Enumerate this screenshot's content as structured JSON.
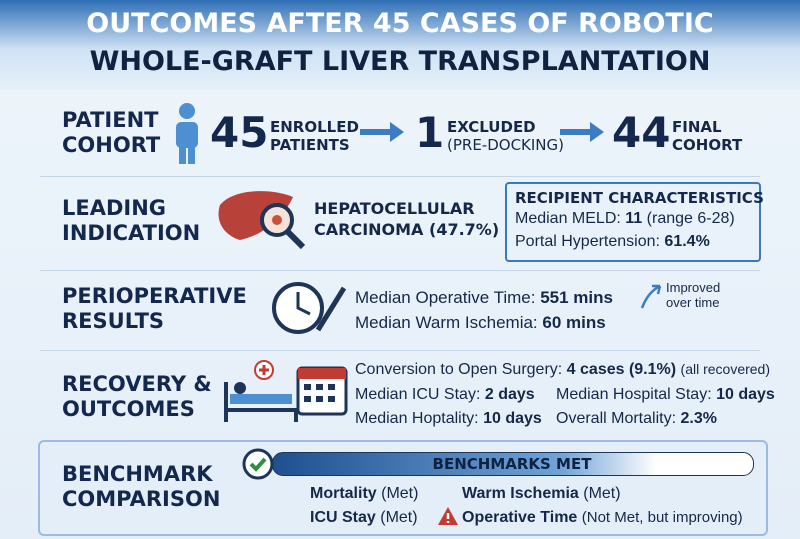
{
  "header": {
    "title_lines": [
      "OUTCOMES AFTER 45 CASES OF ROBOTIC",
      "WHOLE-GRAFT LIVER TRANSPLANTATION"
    ]
  },
  "cohort": {
    "label_lines": [
      "PATIENT",
      "COHORT"
    ],
    "steps": [
      {
        "number": "45",
        "text_lines": [
          "ENROLLED",
          "PATIENTS"
        ]
      },
      {
        "number": "1",
        "text_lines": [
          "EXCLUDED",
          "(PRE-DOCKING)"
        ]
      },
      {
        "number": "44",
        "text_lines": [
          "FINAL",
          "COHORT"
        ]
      }
    ]
  },
  "indication": {
    "label_lines": [
      "LEADING",
      "INDICATION"
    ],
    "text_lines": [
      "HEPATOCELLULAR",
      "CARCINOMA (47.7%)"
    ],
    "characteristics": {
      "title": "RECIPIENT CHARACTERISTICS",
      "meld_label": "Median MELD:",
      "meld_value": "11",
      "meld_range": "(range 6-28)",
      "portal_label": "Portal Hypertension:",
      "portal_value": "61.4%"
    }
  },
  "perioperative": {
    "label_lines": [
      "PERIOPERATIVE",
      "RESULTS"
    ],
    "items": [
      {
        "label": "Median Operative Time:",
        "value": "551 mins"
      },
      {
        "label": "Median Warm Ischemia:",
        "value": "60 mins"
      }
    ],
    "note_lines": [
      "Improved",
      "over time"
    ]
  },
  "recovery": {
    "label_lines": [
      "RECOVERY &",
      "OUTCOMES"
    ],
    "conversion": {
      "label": "Conversion to Open Surgery:",
      "value": "4 cases (9.1%)",
      "note": "(all recovered)"
    },
    "items": [
      {
        "label": "Median ICU Stay:",
        "value": "2 days"
      },
      {
        "label": "Median Hospital Stay:",
        "value": "10 days"
      },
      {
        "label": "Median Hoptality:",
        "value": "10 days"
      },
      {
        "label": "Overall Mortality:",
        "value": "2.3%"
      }
    ]
  },
  "benchmark": {
    "label_lines": [
      "BENCHMARK",
      "COMPARISON"
    ],
    "bar_text": "BENCHMARKS MET",
    "items": [
      {
        "name": "Mortality",
        "status": "(Met)"
      },
      {
        "name": "Warm Ischemia",
        "status": "(Met)"
      },
      {
        "name": "ICU Stay",
        "status": "(Met)"
      },
      {
        "name": "Operative Time",
        "status": "(Not Met, but improving)"
      }
    ]
  }
}
